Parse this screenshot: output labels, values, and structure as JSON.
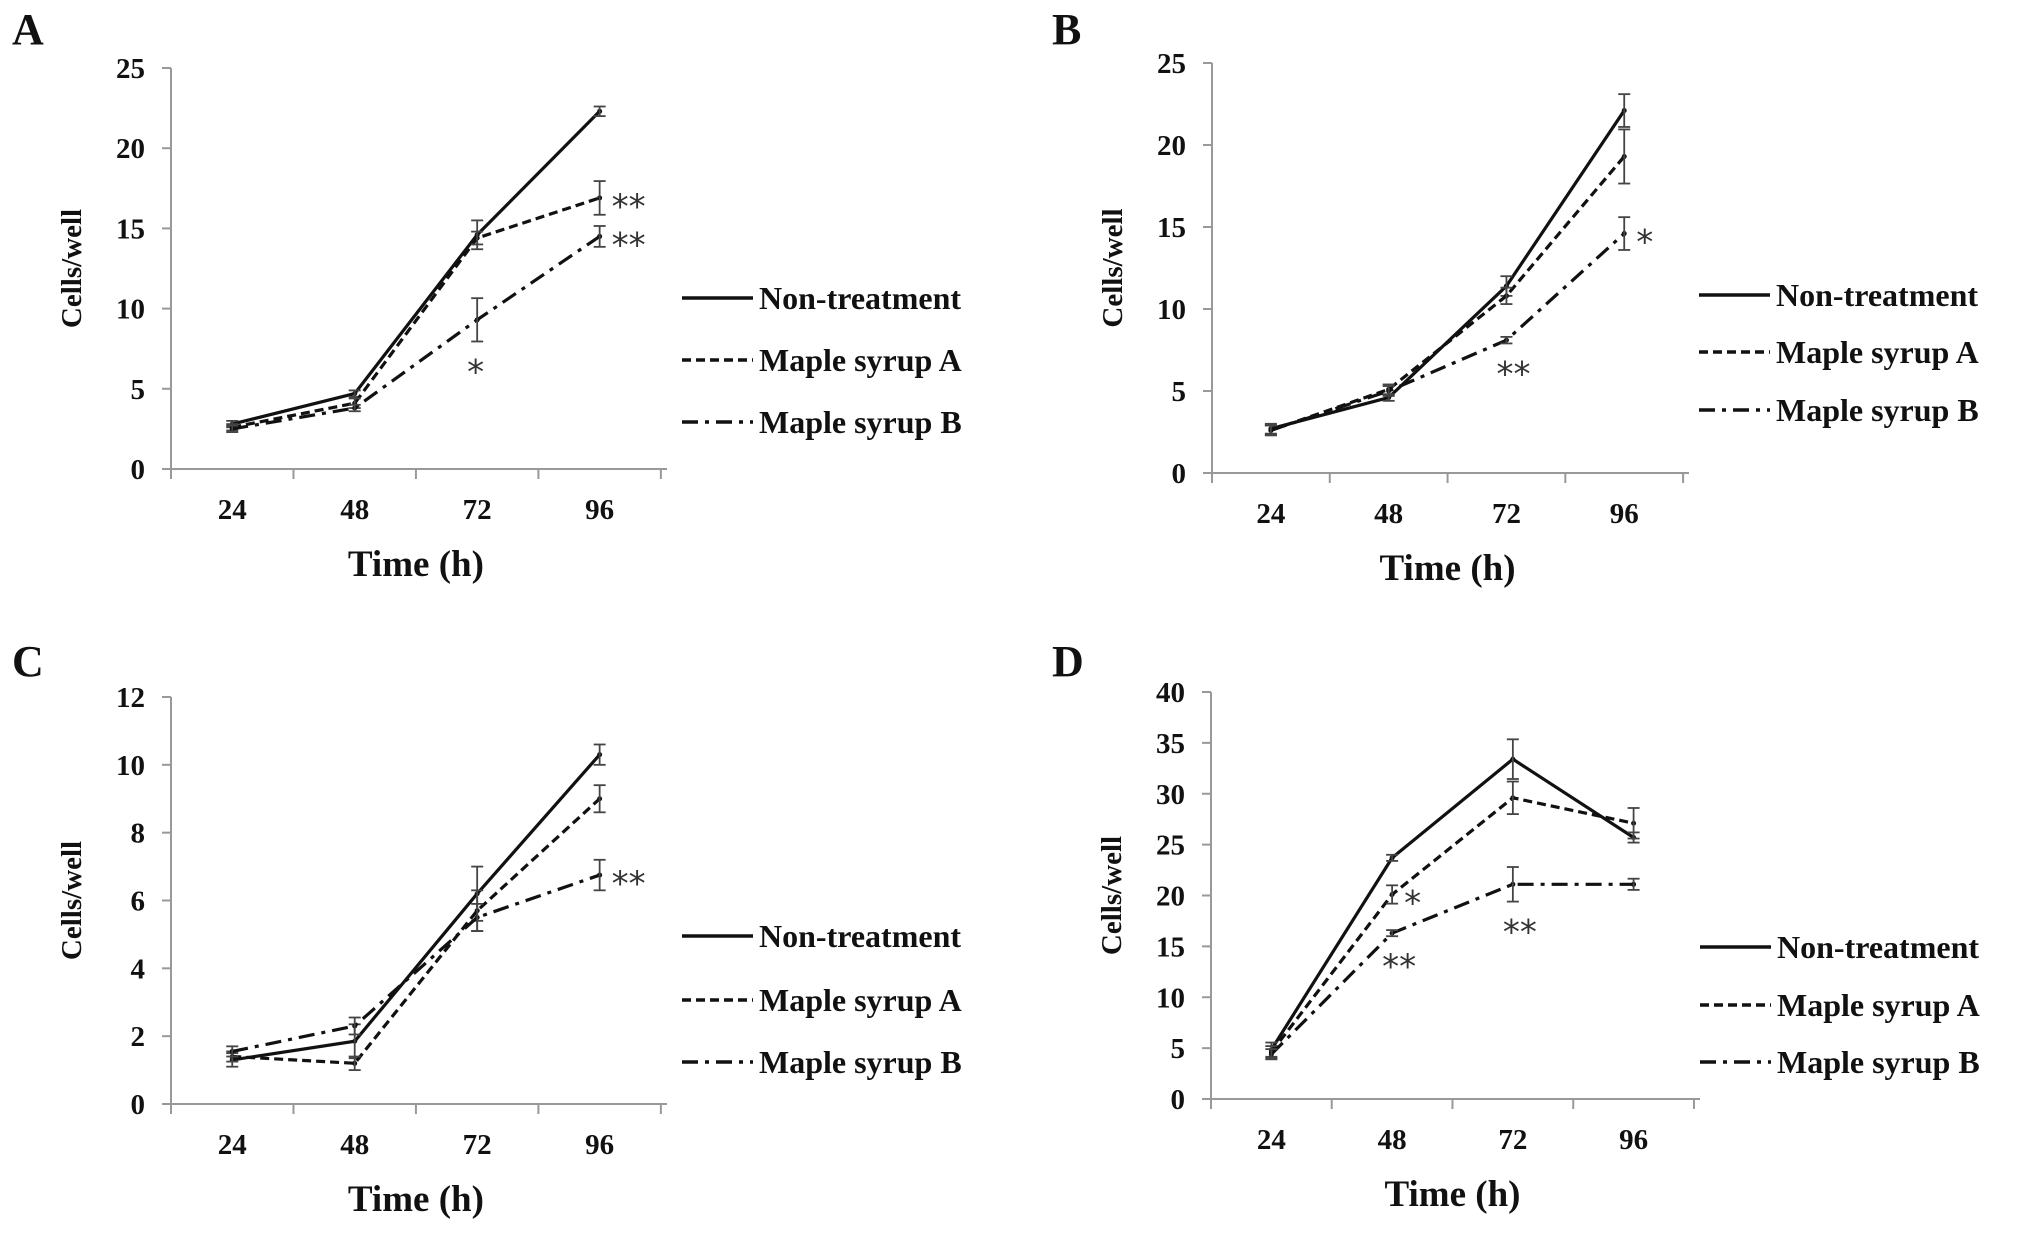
{
  "chart_data": [
    {
      "panel": "A",
      "type": "line",
      "xlabel": "Time (h)",
      "ylabel": "Cells/well",
      "categories": [
        "24",
        "48",
        "72",
        "96"
      ],
      "ylim": [
        0,
        25
      ],
      "yticks": [
        "0",
        "5",
        "10",
        "15",
        "20",
        "25"
      ],
      "grid": false,
      "legend_placement": "right",
      "series": [
        {
          "name": "Non-treatment",
          "style": "solid",
          "values": [
            2.8,
            4.7,
            14.6,
            22.3
          ],
          "errors": [
            0.2,
            0.2,
            0.9,
            0.3
          ]
        },
        {
          "name": "Maple syrup A",
          "style": "dashed",
          "values": [
            2.6,
            4.1,
            14.4,
            16.9
          ],
          "errors": [
            0.2,
            0.3,
            0.4,
            1.05
          ]
        },
        {
          "name": "Maple syrup B",
          "style": "dash-dot",
          "values": [
            2.5,
            3.8,
            9.3,
            14.5
          ],
          "errors": [
            0.2,
            0.2,
            1.35,
            0.65
          ]
        }
      ],
      "annotations": [
        {
          "series": "Maple syrup A",
          "x": "96",
          "text": "**"
        },
        {
          "series": "Maple syrup B",
          "x": "96",
          "text": "**"
        },
        {
          "series": "Maple syrup B",
          "x": "72",
          "text": "*"
        }
      ]
    },
    {
      "panel": "B",
      "type": "line",
      "xlabel": "Time (h)",
      "ylabel": "Cells/well",
      "categories": [
        "24",
        "48",
        "72",
        "96"
      ],
      "ylim": [
        0,
        25
      ],
      "yticks": [
        "0",
        "5",
        "10",
        "15",
        "20",
        "25"
      ],
      "grid": false,
      "legend_placement": "right",
      "series": [
        {
          "name": "Non-treatment",
          "style": "solid",
          "values": [
            2.7,
            4.6,
            11.4,
            22.1
          ],
          "errors": [
            0.3,
            0.2,
            0.6,
            1.0
          ]
        },
        {
          "name": "Maple syrup A",
          "style": "dashed",
          "values": [
            2.6,
            5.1,
            10.8,
            19.3
          ],
          "errors": [
            0.3,
            0.3,
            0.5,
            1.65
          ]
        },
        {
          "name": "Maple syrup B",
          "style": "dash-dot",
          "values": [
            2.6,
            5.0,
            8.1,
            14.6
          ],
          "errors": [
            0.3,
            0.3,
            0.2,
            1.0
          ]
        }
      ],
      "annotations": [
        {
          "series": "Maple syrup B",
          "x": "72",
          "text": "**"
        },
        {
          "series": "Maple syrup B",
          "x": "96",
          "text": "*"
        }
      ]
    },
    {
      "panel": "C",
      "type": "line",
      "xlabel": "Time (h)",
      "ylabel": "Cells/well",
      "categories": [
        "24",
        "48",
        "72",
        "96"
      ],
      "ylim": [
        0,
        12
      ],
      "yticks": [
        "0",
        "2",
        "4",
        "6",
        "8",
        "10",
        "12"
      ],
      "grid": false,
      "legend_placement": "right",
      "series": [
        {
          "name": "Non-treatment",
          "style": "solid",
          "values": [
            1.3,
            1.85,
            6.2,
            10.3
          ],
          "errors": [
            0.2,
            0.5,
            0.8,
            0.3
          ]
        },
        {
          "name": "Maple syrup A",
          "style": "dashed",
          "values": [
            1.4,
            1.2,
            5.7,
            9.0
          ],
          "errors": [
            0.15,
            0.2,
            0.6,
            0.4
          ]
        },
        {
          "name": "Maple syrup B",
          "style": "dash-dot",
          "values": [
            1.55,
            2.3,
            5.5,
            6.75
          ],
          "errors": [
            0.15,
            0.25,
            0.4,
            0.45
          ]
        }
      ],
      "annotations": [
        {
          "series": "Maple syrup B",
          "x": "96",
          "text": "**"
        }
      ]
    },
    {
      "panel": "D",
      "type": "line",
      "xlabel": "Time (h)",
      "ylabel": "Cells/well",
      "categories": [
        "24",
        "48",
        "72",
        "96"
      ],
      "ylim": [
        0,
        40
      ],
      "yticks": [
        "0",
        "5",
        "10",
        "15",
        "20",
        "25",
        "30",
        "35",
        "40"
      ],
      "grid": false,
      "legend_placement": "right",
      "series": [
        {
          "name": "Non-treatment",
          "style": "solid",
          "values": [
            4.85,
            23.7,
            33.4,
            25.7
          ],
          "errors": [
            0.7,
            0.3,
            1.95,
            0.5
          ]
        },
        {
          "name": "Maple syrup A",
          "style": "dashed",
          "values": [
            4.6,
            20.1,
            29.6,
            27.1
          ],
          "errors": [
            0.6,
            0.9,
            1.6,
            1.5
          ]
        },
        {
          "name": "Maple syrup B",
          "style": "dash-dot",
          "values": [
            4.4,
            16.3,
            21.1,
            21.1
          ],
          "errors": [
            0.5,
            0.3,
            1.7,
            0.55
          ]
        }
      ],
      "annotations": [
        {
          "series": "Maple syrup A",
          "x": "48",
          "text": "*"
        },
        {
          "series": "Maple syrup B",
          "x": "48",
          "text": "**"
        },
        {
          "series": "Maple syrup B",
          "x": "72",
          "text": "**"
        }
      ]
    }
  ]
}
